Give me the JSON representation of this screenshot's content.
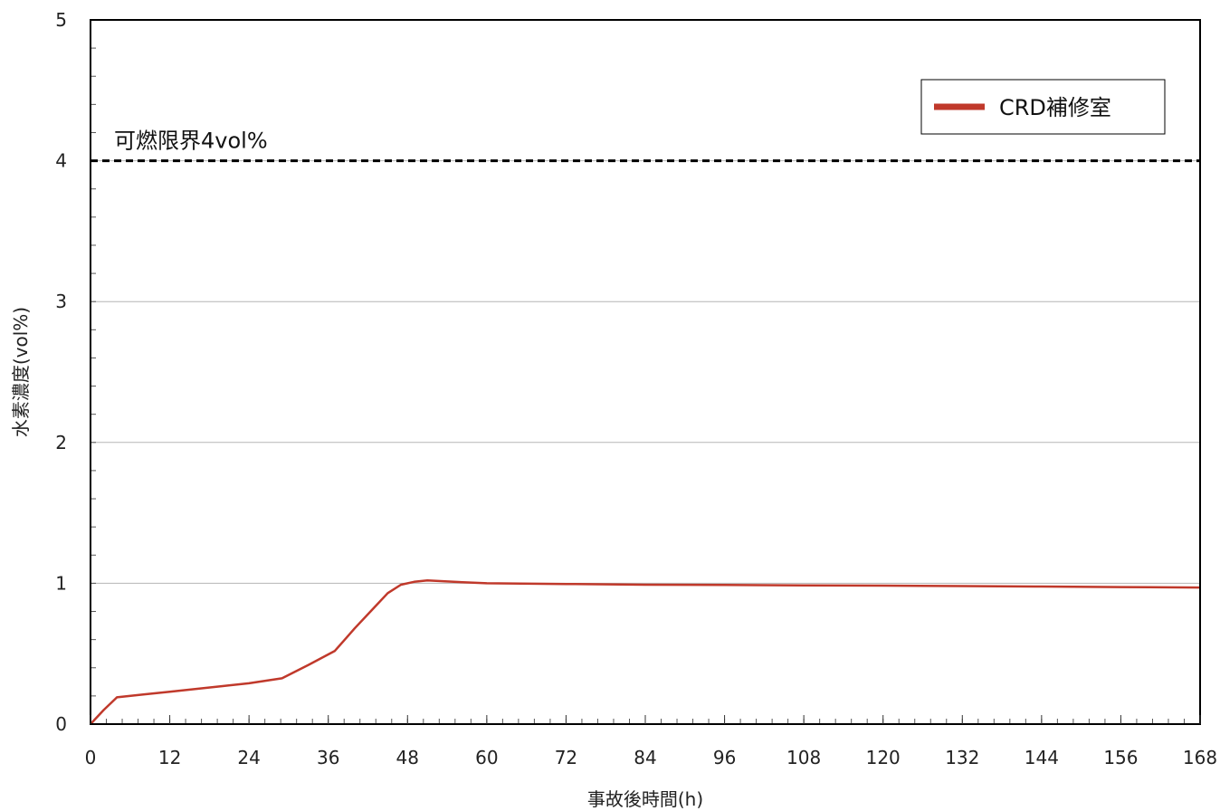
{
  "chart_data": {
    "type": "line",
    "xlabel": "事故後時間(h)",
    "ylabel": "水素濃度(vol%)",
    "xlim": [
      0,
      168
    ],
    "ylim": [
      0,
      5
    ],
    "x_ticks": [
      0,
      12,
      24,
      36,
      48,
      60,
      72,
      84,
      96,
      108,
      120,
      132,
      144,
      156,
      168
    ],
    "y_ticks": [
      0,
      1,
      2,
      3,
      4,
      5
    ],
    "grid": "horizontal",
    "legend_position": "top-right",
    "series": [
      {
        "name": "CRD補修室",
        "color": "#c0392b",
        "x": [
          0,
          2,
          4,
          8,
          12,
          16,
          20,
          24,
          29,
          33,
          37,
          40,
          43,
          45,
          47,
          49,
          51,
          55,
          60,
          72,
          84,
          96,
          108,
          120,
          132,
          144,
          156,
          168
        ],
        "y": [
          0,
          0.1,
          0.19,
          0.21,
          0.23,
          0.25,
          0.27,
          0.29,
          0.325,
          0.42,
          0.52,
          0.68,
          0.83,
          0.93,
          0.99,
          1.01,
          1.02,
          1.01,
          1.0,
          0.995,
          0.99,
          0.988,
          0.985,
          0.983,
          0.98,
          0.977,
          0.973,
          0.97
        ]
      }
    ],
    "reference_line": {
      "y": 4,
      "label": "可燃限界4vol%",
      "style": "dashed",
      "color": "#000000"
    }
  }
}
